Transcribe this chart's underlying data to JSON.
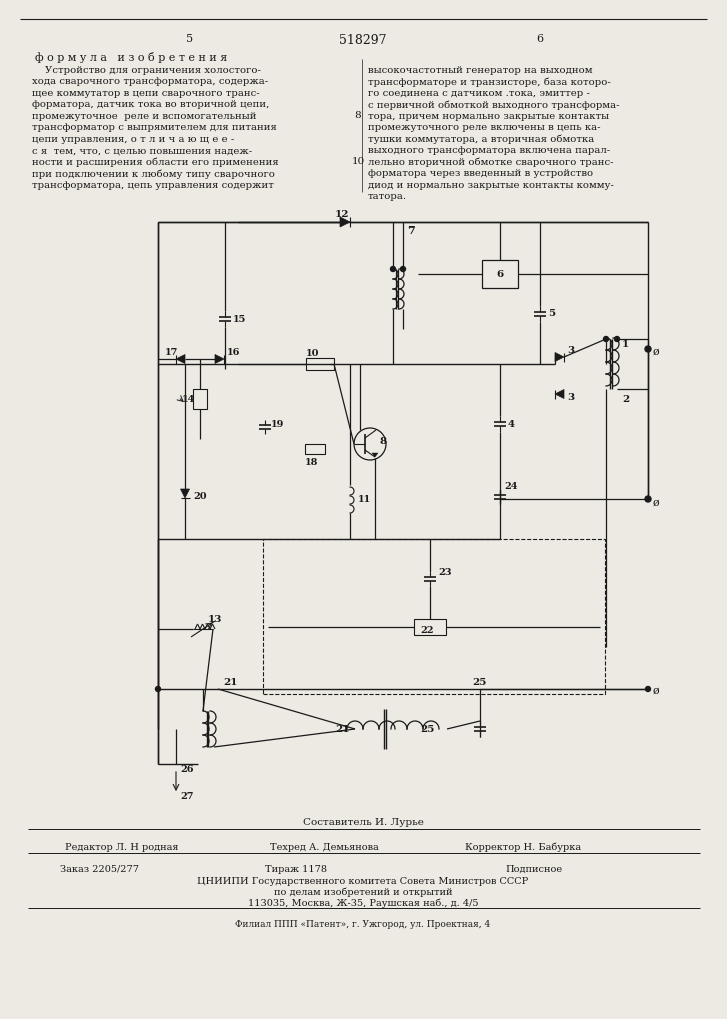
{
  "page_number_center": "518297",
  "page_num_left": "5",
  "page_num_right": "6",
  "background_color": "#ede9e3",
  "text_color": "#1a1a1a",
  "title_formula": "ф о р м у л а   и з о б р е т е н и я",
  "composer": "Составитель И. Лурье",
  "editor": "Редактор Л. Н родная",
  "tech": "Техред А. Демьянова",
  "corrector": "Корректор Н. Бабурка",
  "order": "Заказ 2205/277",
  "circulation": "Тираж 1178",
  "subscribed": "Подписное",
  "org_line1": "ЦНИИПИ Государственного комитета Совета Министров СССР",
  "org_line2": "по делам изобретений и открытий",
  "address": "113035, Москва, Ж-35, Раушская наб., д. 4/5",
  "branch": "Филиал ППП «Патент», г. Ужгород, ул. Проектная, 4"
}
